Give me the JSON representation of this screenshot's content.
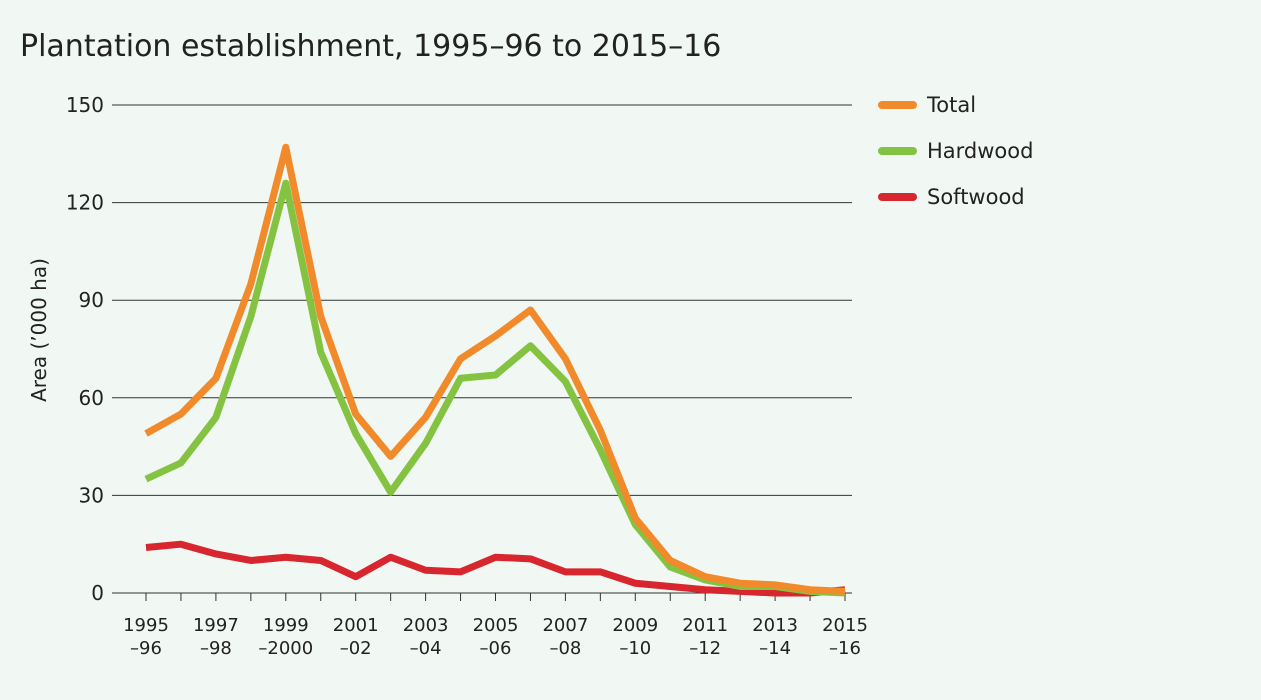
{
  "chart_data": {
    "type": "line",
    "title": "Plantation establishment, 1995–96 to 2015–16",
    "y_label": "Area (’000 ha)",
    "categories": [
      "1995\n–96",
      null,
      "1997\n–98",
      null,
      "1999\n–2000",
      null,
      "2001\n–02",
      null,
      "2003\n–04",
      null,
      "2005\n–06",
      null,
      "2007\n–08",
      null,
      "2009\n–10",
      null,
      "2011\n–12",
      null,
      "2013\n–14",
      null,
      "2015\n–16"
    ],
    "series": [
      {
        "name": "Total",
        "color": "#f18a2b",
        "values": [
          49,
          55,
          66,
          95,
          137,
          85,
          55,
          42,
          54,
          72,
          79,
          87,
          72,
          50,
          23,
          10,
          5,
          3,
          2.5,
          1,
          0.5
        ]
      },
      {
        "name": "Hardwood",
        "color": "#84c341",
        "values": [
          35,
          40,
          54,
          85,
          126,
          74,
          49,
          31,
          46,
          66,
          67,
          76,
          65,
          44,
          21,
          8,
          4,
          2,
          2,
          0.5,
          0
        ]
      },
      {
        "name": "Softwood",
        "color": "#d8262e",
        "values": [
          14,
          15,
          12,
          10,
          11,
          10,
          5,
          11,
          7,
          6.5,
          11,
          10.5,
          6.5,
          6.5,
          3,
          2,
          1,
          0.5,
          0,
          0,
          1
        ]
      }
    ],
    "ylim": [
      0,
      150
    ],
    "yticks": [
      0,
      30,
      60,
      90,
      120,
      150
    ],
    "grid": true,
    "legend": "right"
  }
}
